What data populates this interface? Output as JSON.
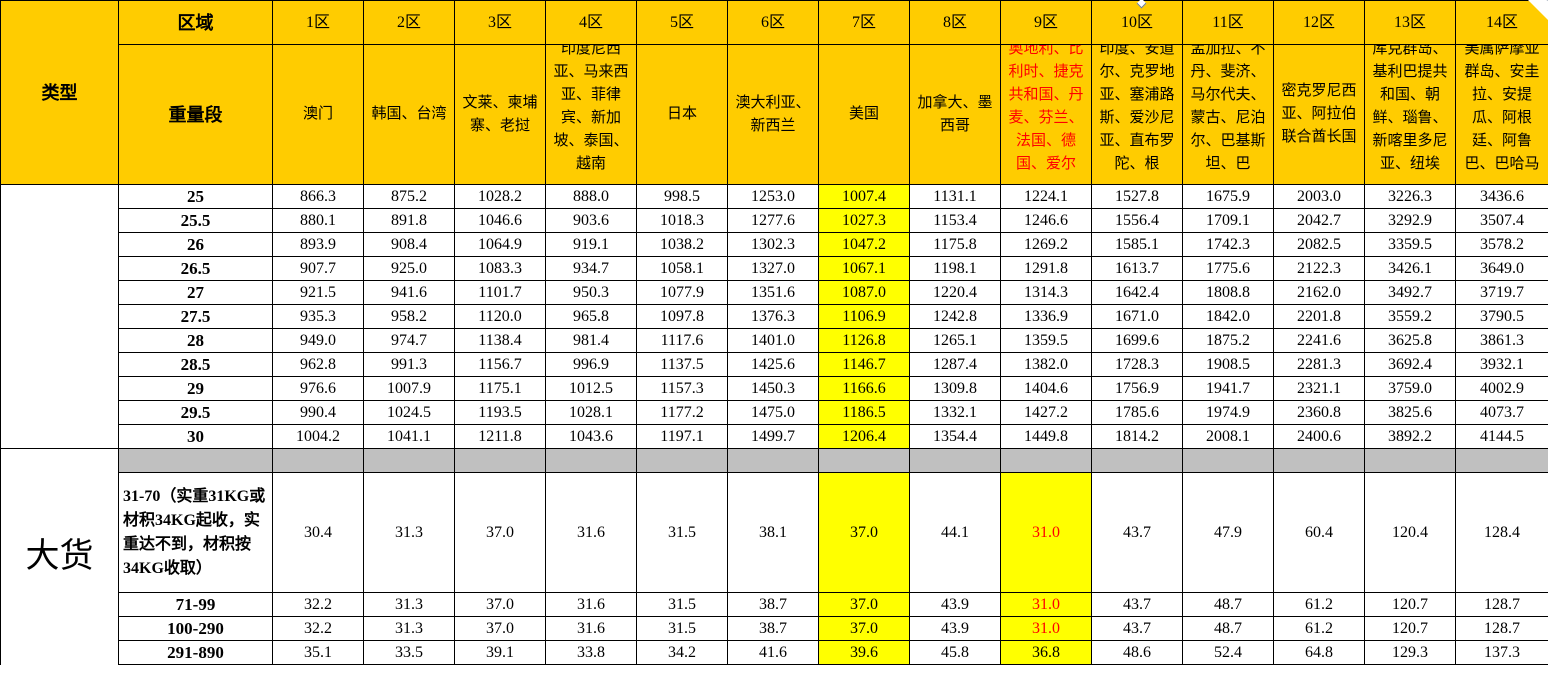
{
  "header": {
    "type_label": "类型",
    "zone_label": "区域",
    "weight_label": "重量段",
    "zones": [
      "1区",
      "2区",
      "3区",
      "4区",
      "5区",
      "6区",
      "7区",
      "8区",
      "9区",
      "10区",
      "11区",
      "12区",
      "13区",
      "14区"
    ],
    "countries": [
      "澳门",
      "韩国、台湾",
      "文莱、柬埔寨、老挝",
      "印度尼西亚、马来西亚、菲律宾、新加坡、泰国、越南",
      "日本",
      "澳大利亚、新西兰",
      "美国",
      "加拿大、墨西哥",
      "奥地利、比利时、捷克共和国、丹麦、芬兰、法国、德国、爱尔",
      "印度、安道尔、克罗地亚、塞浦路斯、爱沙尼亚、直布罗陀、根",
      "孟加拉、不丹、斐济、马尔代夫、蒙古、尼泊尔、巴基斯坦、巴",
      "密克罗尼西亚、阿拉伯联合酋长国",
      "库克群岛、基利巴提共和国、朝鲜、瑙鲁、新喀里多尼亚、纽埃",
      "美属萨摩亚群岛、安圭拉、安提瓜、阿根廷、阿鲁巴、巴哈马"
    ]
  },
  "colors": {
    "header_bg": "#ffcc00",
    "highlight": "#ffff00",
    "separator": "#c0c0c0",
    "red_text": "#ff0000"
  },
  "rows": [
    {
      "weight": "25",
      "values": [
        "866.3",
        "875.2",
        "1028.2",
        "888.0",
        "998.5",
        "1253.0",
        "1007.4",
        "1131.1",
        "1224.1",
        "1527.8",
        "1675.9",
        "2003.0",
        "3226.3",
        "3436.6"
      ]
    },
    {
      "weight": "25.5",
      "values": [
        "880.1",
        "891.8",
        "1046.6",
        "903.6",
        "1018.3",
        "1277.6",
        "1027.3",
        "1153.4",
        "1246.6",
        "1556.4",
        "1709.1",
        "2042.7",
        "3292.9",
        "3507.4"
      ]
    },
    {
      "weight": "26",
      "values": [
        "893.9",
        "908.4",
        "1064.9",
        "919.1",
        "1038.2",
        "1302.3",
        "1047.2",
        "1175.8",
        "1269.2",
        "1585.1",
        "1742.3",
        "2082.5",
        "3359.5",
        "3578.2"
      ]
    },
    {
      "weight": "26.5",
      "values": [
        "907.7",
        "925.0",
        "1083.3",
        "934.7",
        "1058.1",
        "1327.0",
        "1067.1",
        "1198.1",
        "1291.8",
        "1613.7",
        "1775.6",
        "2122.3",
        "3426.1",
        "3649.0"
      ]
    },
    {
      "weight": "27",
      "values": [
        "921.5",
        "941.6",
        "1101.7",
        "950.3",
        "1077.9",
        "1351.6",
        "1087.0",
        "1220.4",
        "1314.3",
        "1642.4",
        "1808.8",
        "2162.0",
        "3492.7",
        "3719.7"
      ]
    },
    {
      "weight": "27.5",
      "values": [
        "935.3",
        "958.2",
        "1120.0",
        "965.8",
        "1097.8",
        "1376.3",
        "1106.9",
        "1242.8",
        "1336.9",
        "1671.0",
        "1842.0",
        "2201.8",
        "3559.2",
        "3790.5"
      ]
    },
    {
      "weight": "28",
      "values": [
        "949.0",
        "974.7",
        "1138.4",
        "981.4",
        "1117.6",
        "1401.0",
        "1126.8",
        "1265.1",
        "1359.5",
        "1699.6",
        "1875.2",
        "2241.6",
        "3625.8",
        "3861.3"
      ]
    },
    {
      "weight": "28.5",
      "values": [
        "962.8",
        "991.3",
        "1156.7",
        "996.9",
        "1137.5",
        "1425.6",
        "1146.7",
        "1287.4",
        "1382.0",
        "1728.3",
        "1908.5",
        "2281.3",
        "3692.4",
        "3932.1"
      ]
    },
    {
      "weight": "29",
      "values": [
        "976.6",
        "1007.9",
        "1175.1",
        "1012.5",
        "1157.3",
        "1450.3",
        "1166.6",
        "1309.8",
        "1404.6",
        "1756.9",
        "1941.7",
        "2321.1",
        "3759.0",
        "4002.9"
      ]
    },
    {
      "weight": "29.5",
      "values": [
        "990.4",
        "1024.5",
        "1193.5",
        "1028.1",
        "1177.2",
        "1475.0",
        "1186.5",
        "1332.1",
        "1427.2",
        "1785.6",
        "1974.9",
        "2360.8",
        "3825.6",
        "4073.7"
      ]
    },
    {
      "weight": "30",
      "values": [
        "1004.2",
        "1041.1",
        "1211.8",
        "1043.6",
        "1197.1",
        "1499.7",
        "1206.4",
        "1354.4",
        "1449.8",
        "1814.2",
        "2008.1",
        "2400.6",
        "3892.2",
        "4144.5"
      ]
    }
  ],
  "bulk": {
    "label": "大货",
    "rows": [
      {
        "weight": "31-70（实重31KG或材积34KG起收，实重达不到，材积按34KG收取）",
        "values": [
          "30.4",
          "31.3",
          "37.0",
          "31.6",
          "31.5",
          "38.1",
          "37.0",
          "44.1",
          "31.0",
          "43.7",
          "47.9",
          "60.4",
          "120.4",
          "128.4"
        ],
        "zone9_red": true
      },
      {
        "weight": "71-99",
        "values": [
          "32.2",
          "31.3",
          "37.0",
          "31.6",
          "31.5",
          "38.7",
          "37.0",
          "43.9",
          "31.0",
          "43.7",
          "48.7",
          "61.2",
          "120.7",
          "128.7"
        ],
        "zone9_red": true
      },
      {
        "weight": "100-290",
        "values": [
          "32.2",
          "31.3",
          "37.0",
          "31.6",
          "31.5",
          "38.7",
          "37.0",
          "43.9",
          "31.0",
          "43.7",
          "48.7",
          "61.2",
          "120.7",
          "128.7"
        ],
        "zone9_red": true
      },
      {
        "weight": "291-890",
        "values": [
          "35.1",
          "33.5",
          "39.1",
          "33.8",
          "34.2",
          "41.6",
          "39.6",
          "45.8",
          "36.8",
          "48.6",
          "52.4",
          "64.8",
          "129.3",
          "137.3"
        ],
        "zone9_red": false
      }
    ]
  }
}
